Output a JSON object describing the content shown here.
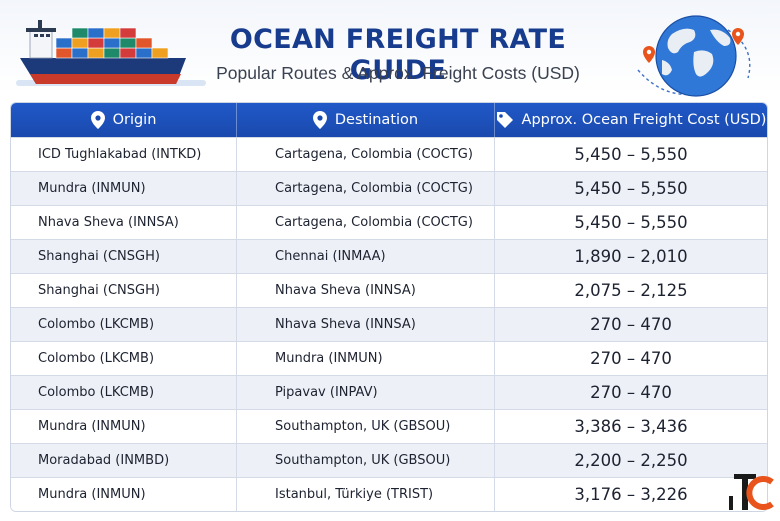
{
  "header": {
    "title": "OCEAN FREIGHT RATE GUIDE",
    "subtitle": "Popular Routes & Approx. Freight Costs (USD)"
  },
  "table": {
    "columns": [
      {
        "label": "Origin",
        "icon": "location-pin-icon"
      },
      {
        "label": "Destination",
        "icon": "location-pin-icon"
      },
      {
        "label": "Approx. Ocean Freight Cost (USD)",
        "icon": "price-tag-icon"
      }
    ],
    "rows": [
      {
        "origin": "ICD Tughlakabad (INTKD)",
        "destination": "Cartagena, Colombia (COCTG)",
        "cost": "5,450 – 5,550"
      },
      {
        "origin": "Mundra (INMUN)",
        "destination": "Cartagena, Colombia (COCTG)",
        "cost": "5,450 – 5,550"
      },
      {
        "origin": "Nhava Sheva (INNSA)",
        "destination": "Cartagena, Colombia (COCTG)",
        "cost": "5,450 – 5,550"
      },
      {
        "origin": "Shanghai (CNSGH)",
        "destination": "Chennai (INMAA)",
        "cost": "1,890 – 2,010"
      },
      {
        "origin": "Shanghai (CNSGH)",
        "destination": "Nhava Sheva (INNSA)",
        "cost": "2,075 – 2,125"
      },
      {
        "origin": "Colombo (LKCMB)",
        "destination": "Nhava Sheva (INNSA)",
        "cost": "270 – 470"
      },
      {
        "origin": "Colombo (LKCMB)",
        "destination": "Mundra (INMUN)",
        "cost": "270 – 470"
      },
      {
        "origin": "Colombo (LKCMB)",
        "destination": "Pipavav (INPAV)",
        "cost": "270 – 470"
      },
      {
        "origin": "Mundra (INMUN)",
        "destination": "Southampton, UK (GBSOU)",
        "cost": "3,386 – 3,436"
      },
      {
        "origin": "Moradabad (INMBD)",
        "destination": "Southampton, UK (GBSOU)",
        "cost": "2,200 – 2,250"
      },
      {
        "origin": "Mundra (INMUN)",
        "destination": "Istanbul, Türkiye (TRIST)",
        "cost": "3,176 – 3,226"
      }
    ]
  },
  "logo": {
    "text": "TC"
  },
  "colors": {
    "title": "#173b8d",
    "header_bg": "#1a49ad",
    "row_alt": "#edf1f7",
    "logo_orange": "#e8541c"
  },
  "images": {
    "ship": "container-ship-icon",
    "globe": "globe-with-pins-icon"
  }
}
